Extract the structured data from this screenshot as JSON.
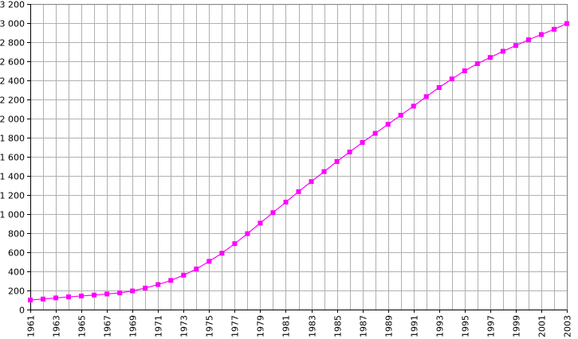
{
  "chart_data": {
    "type": "line",
    "title": "",
    "xlabel": "",
    "ylabel": "",
    "xlim": [
      1961,
      2003
    ],
    "ylim": [
      0,
      3200
    ],
    "ytick_step": 200,
    "xtick_labels": [
      "1961",
      "1963",
      "1965",
      "1967",
      "1969",
      "1971",
      "1973",
      "1975",
      "1977",
      "1979",
      "1981",
      "1983",
      "1985",
      "1987",
      "1989",
      "1991",
      "1993",
      "1995",
      "1997",
      "1999",
      "2001",
      "2003"
    ],
    "ytick_labels": [
      "0",
      "200",
      "400",
      "600",
      "800",
      "1 000",
      "1 200",
      "1 400",
      "1 600",
      "1 800",
      "2 000",
      "2 200",
      "2 400",
      "2 600",
      "2 800",
      "3 000",
      "3 200"
    ],
    "grid": true,
    "legend": "none",
    "series": [
      {
        "color": "#ff00ff",
        "marker": "square",
        "x": [
          1961,
          1962,
          1963,
          1964,
          1965,
          1966,
          1967,
          1968,
          1969,
          1970,
          1971,
          1972,
          1973,
          1974,
          1975,
          1976,
          1977,
          1978,
          1979,
          1980,
          1981,
          1982,
          1983,
          1984,
          1985,
          1986,
          1987,
          1988,
          1989,
          1990,
          1991,
          1992,
          1993,
          1994,
          1995,
          1996,
          1997,
          1998,
          1999,
          2000,
          2001,
          2002,
          2003
        ],
        "y": [
          100,
          110,
          122,
          133,
          142,
          152,
          163,
          175,
          195,
          225,
          262,
          305,
          360,
          425,
          505,
          590,
          690,
          795,
          905,
          1015,
          1125,
          1235,
          1340,
          1445,
          1550,
          1650,
          1750,
          1845,
          1940,
          2035,
          2130,
          2230,
          2325,
          2415,
          2500,
          2575,
          2640,
          2705,
          2765,
          2825,
          2880,
          2935,
          2995
        ]
      }
    ]
  }
}
